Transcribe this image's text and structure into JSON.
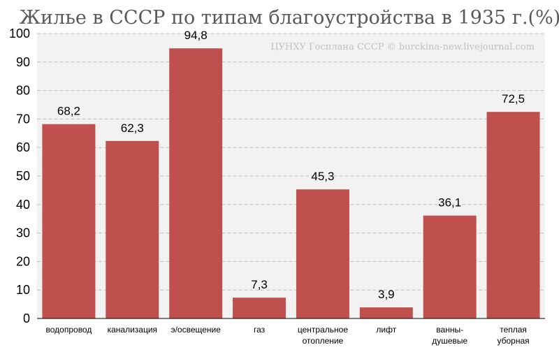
{
  "chart_data": {
    "type": "bar",
    "title": "Жилье в СССР по типам благоустройства в 1935 г.(%)",
    "source": "ЦУНХУ Госплана СССР © burckina-new.livejournal.com",
    "categories": [
      [
        "водопровод"
      ],
      [
        "канализация"
      ],
      [
        "э/освещение"
      ],
      [
        "газ"
      ],
      [
        "центральное",
        "отопление"
      ],
      [
        "лифт"
      ],
      [
        "ванны-",
        "душевые"
      ],
      [
        "теплая",
        "уборная"
      ]
    ],
    "values": [
      68.2,
      62.3,
      94.8,
      7.3,
      45.3,
      3.9,
      36.1,
      72.5
    ],
    "value_labels": [
      "68,2",
      "62,3",
      "94,8",
      "7,3",
      "45,3",
      "3,9",
      "36,1",
      "72,5"
    ],
    "yticks": [
      0,
      10,
      20,
      30,
      40,
      50,
      60,
      70,
      80,
      90,
      100
    ],
    "ylim": [
      0,
      100
    ],
    "grid": true,
    "colors": {
      "bar": "#c0504d",
      "plot_background": "#f2f2f2",
      "grid": "#bfbfbf"
    }
  }
}
